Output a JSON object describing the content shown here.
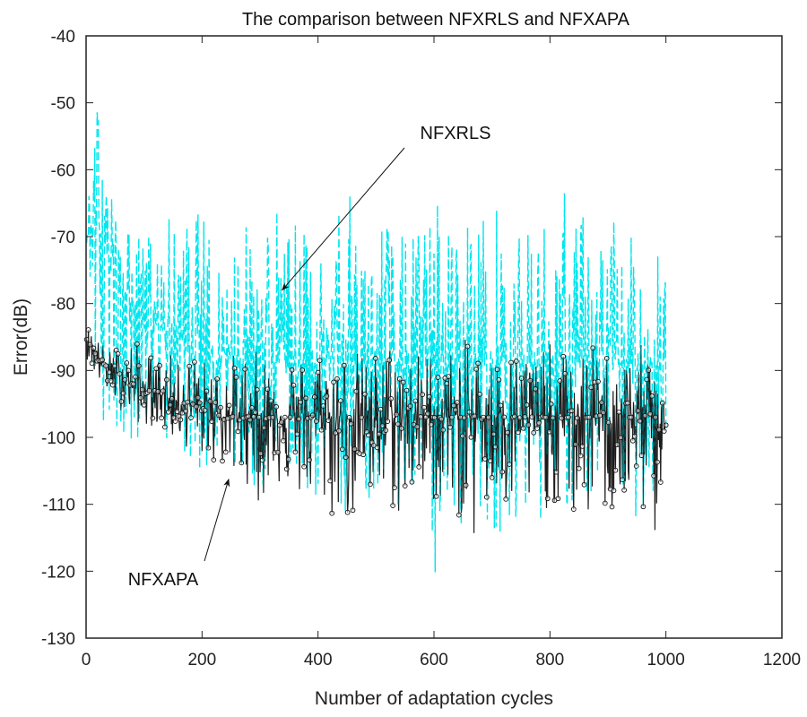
{
  "chart_data": {
    "type": "line",
    "title": "The comparison between NFXRLS and NFXAPA",
    "xlabel": "Number of adaptation cycles",
    "ylabel": "Error(dB)",
    "xlim": [
      0,
      1200
    ],
    "ylim": [
      -130,
      -40
    ],
    "xticks": [
      0,
      200,
      400,
      600,
      800,
      1000,
      1200
    ],
    "yticks": [
      -40,
      -50,
      -60,
      -70,
      -80,
      -90,
      -100,
      -110,
      -120,
      -130
    ],
    "grid": false,
    "legend": "none",
    "x": [
      0,
      20,
      40,
      60,
      80,
      100,
      120,
      140,
      160,
      180,
      200,
      220,
      240,
      260,
      280,
      300,
      320,
      340,
      360,
      380,
      400,
      420,
      440,
      460,
      480,
      500,
      520,
      540,
      560,
      580,
      600,
      620,
      640,
      660,
      680,
      700,
      720,
      740,
      760,
      780,
      800,
      820,
      840,
      860,
      880,
      900,
      920,
      940,
      960,
      980,
      1000
    ],
    "series": [
      {
        "name": "NFXRLS",
        "color": "#00e5ee",
        "style": "dashed",
        "mean": [
          -70,
          -68,
          -74,
          -78,
          -80,
          -82,
          -83,
          -84,
          -85,
          -86,
          -86,
          -87,
          -87,
          -88,
          -88,
          -88,
          -89,
          -88,
          -89,
          -89,
          -89,
          -88,
          -89,
          -89,
          -89,
          -89,
          -89,
          -89,
          -89,
          -89,
          -89,
          -89,
          -89,
          -89,
          -89,
          -89,
          -89,
          -89,
          -89,
          -89,
          -89,
          -89,
          -89,
          -89,
          -89,
          -89,
          -89,
          -89,
          -89,
          -89,
          -90
        ],
        "max": [
          -55,
          -45,
          -62,
          -66,
          -70,
          -68,
          -70,
          -66,
          -70,
          -66,
          -66,
          -70,
          -72,
          -66,
          -68,
          -68,
          -61,
          -68,
          -66,
          -70,
          -72,
          -64,
          -57,
          -66,
          -66,
          -64,
          -66,
          -70,
          -68,
          -68,
          -64,
          -62,
          -70,
          -64,
          -66,
          -64,
          -66,
          -72,
          -66,
          -68,
          -64,
          -62,
          -64,
          -66,
          -68,
          -66,
          -64,
          -70,
          -68,
          -64,
          -62
        ],
        "min": [
          -98,
          -100,
          -96,
          -100,
          -101,
          -99,
          -100,
          -102,
          -101,
          -104,
          -105,
          -106,
          -106,
          -108,
          -108,
          -109,
          -108,
          -110,
          -106,
          -109,
          -110,
          -112,
          -111,
          -112,
          -110,
          -111,
          -112,
          -110,
          -112,
          -112,
          -124,
          -113,
          -114,
          -112,
          -112,
          -115,
          -114,
          -112,
          -112,
          -113,
          -110,
          -111,
          -112,
          -110,
          -112,
          -113,
          -111,
          -112,
          -113,
          -110,
          -100
        ]
      },
      {
        "name": "NFXAPA",
        "color": "#000000",
        "style": "solid-circle-markers",
        "mean": [
          -85,
          -88,
          -90,
          -91,
          -92,
          -93,
          -93,
          -94,
          -95,
          -95,
          -96,
          -96,
          -97,
          -97,
          -97,
          -97,
          -97,
          -97,
          -97,
          -97,
          -97,
          -97,
          -97,
          -97,
          -97,
          -97,
          -97,
          -97,
          -97,
          -97,
          -97,
          -97,
          -97,
          -97,
          -97,
          -97,
          -97,
          -97,
          -97,
          -97,
          -97,
          -97,
          -97,
          -97,
          -97,
          -97,
          -97,
          -97,
          -97,
          -97,
          -98
        ],
        "max": [
          -83,
          -85,
          -87,
          -86,
          -85,
          -87,
          -88,
          -87,
          -89,
          -87,
          -88,
          -89,
          -88,
          -87,
          -87,
          -87,
          -87,
          -86,
          -87,
          -88,
          -86,
          -87,
          -87,
          -86,
          -88,
          -87,
          -85,
          -86,
          -87,
          -87,
          -86,
          -87,
          -86,
          -85,
          -87,
          -88,
          -86,
          -87,
          -86,
          -87,
          -86,
          -87,
          -88,
          -87,
          -86,
          -87,
          -88,
          -87,
          -86,
          -88,
          -90
        ],
        "min": [
          -88,
          -92,
          -94,
          -96,
          -97,
          -99,
          -98,
          -100,
          -101,
          -102,
          -103,
          -104,
          -105,
          -107,
          -107,
          -111,
          -106,
          -108,
          -109,
          -110,
          -110,
          -113,
          -112,
          -113,
          -110,
          -113,
          -110,
          -113,
          -109,
          -112,
          -110,
          -112,
          -111,
          -119,
          -112,
          -113,
          -111,
          -117,
          -112,
          -113,
          -110,
          -112,
          -113,
          -114,
          -110,
          -112,
          -113,
          -111,
          -112,
          -116,
          -105
        ]
      }
    ],
    "annotations": [
      {
        "text": "NFXRLS",
        "points_to": [
          400,
          -78
        ]
      },
      {
        "text": "NFXAPA",
        "points_to": [
          300,
          -106
        ]
      }
    ]
  }
}
